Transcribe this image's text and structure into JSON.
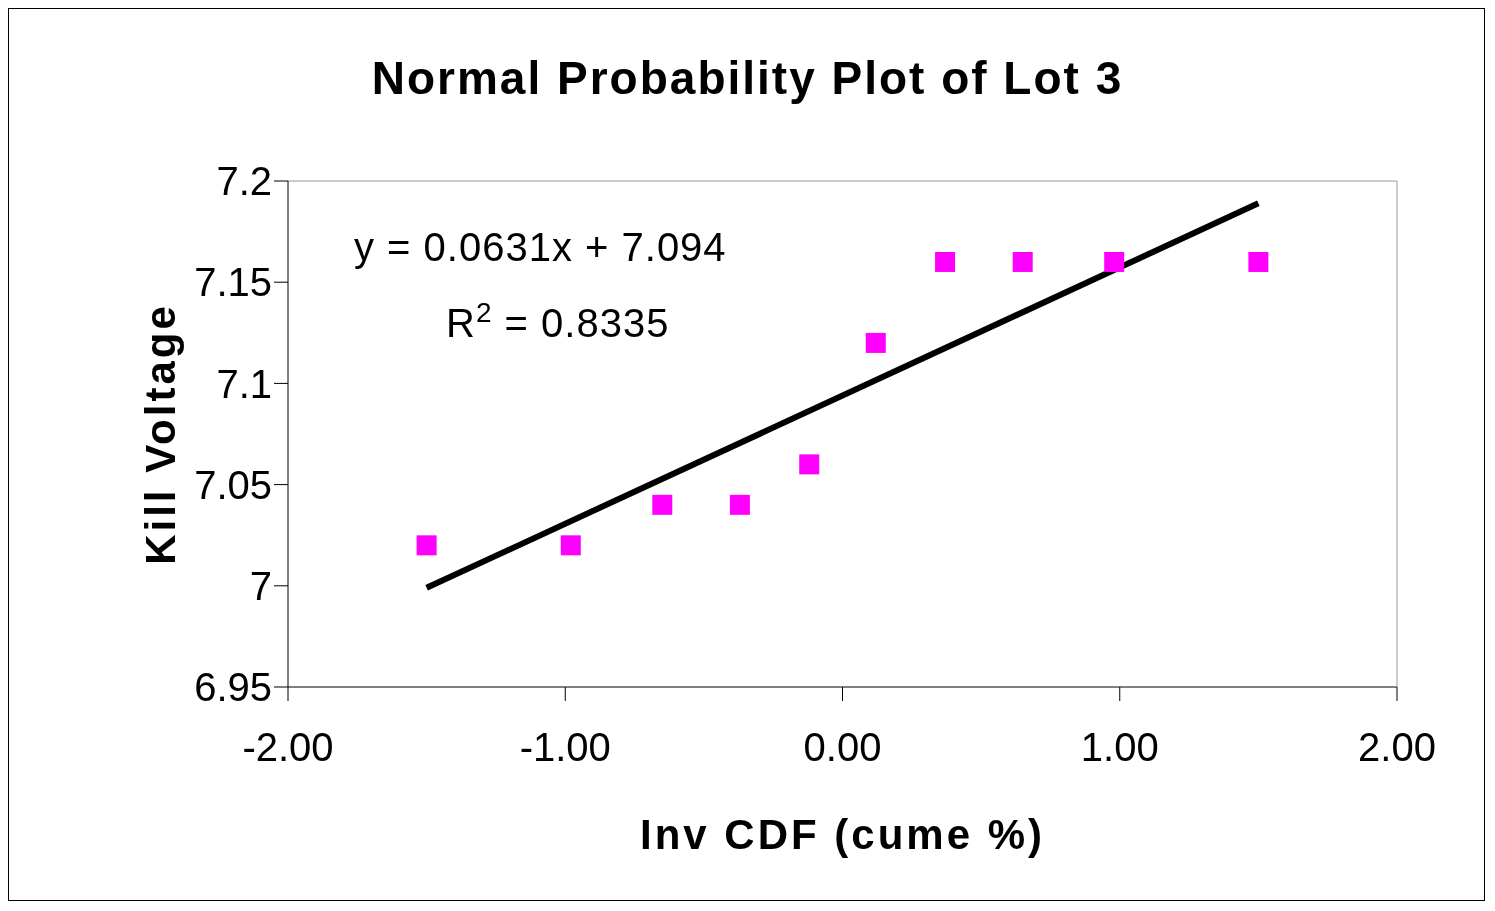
{
  "chart_data": {
    "type": "scatter",
    "title": "Normal Probability Plot of Lot 3",
    "xlabel": "Inv CDF (cume %)",
    "ylabel": "Kill Voltage",
    "annotations": [
      "y = 0.0631x + 7.094",
      "R$^{2}$ = 0.8335"
    ],
    "series": [
      {
        "color": "#ff00ff",
        "marker": "square",
        "x": [
          -1.5,
          -0.98,
          -0.65,
          -0.37,
          -0.12,
          0.12,
          0.37,
          0.65,
          0.98,
          1.5
        ],
        "values": [
          7.02,
          7.02,
          7.04,
          7.04,
          7.06,
          7.12,
          7.16,
          7.16,
          7.16,
          7.16
        ]
      },
      {
        "type": "line",
        "color": "#000000",
        "marker": "none",
        "line_style": "solid",
        "x": [
          -1.5,
          1.5
        ],
        "values": [
          6.999,
          7.189
        ]
      }
    ],
    "xlim": [
      -2,
      2
    ],
    "xticks": [
      {
        "value": -2,
        "label": "-2.00"
      },
      {
        "value": -1,
        "label": "-1.00"
      },
      {
        "value": 0,
        "label": "0.00"
      },
      {
        "value": 1,
        "label": "1.00"
      },
      {
        "value": 2,
        "label": "2.00"
      }
    ],
    "ylim": [
      6.95,
      7.2
    ],
    "yticks": [
      6.95,
      7,
      7.05,
      7.1,
      7.15,
      7.2
    ],
    "grid": false,
    "legend": false
  }
}
